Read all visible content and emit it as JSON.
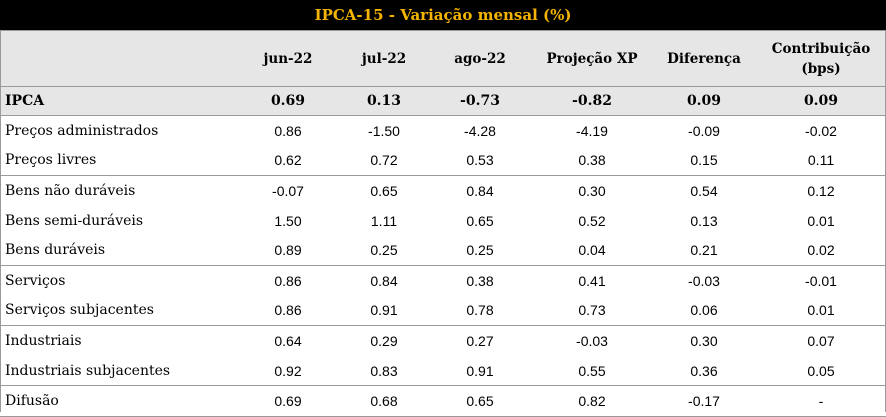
{
  "title": "IPCA-15 - Variação mensal (%)",
  "columns": [
    "",
    "jun-22",
    "jul-22",
    "ago-22",
    "Projeção XP",
    "Diferença",
    "Contribuição (bps)"
  ],
  "header_col6_line1": "Contribuição",
  "header_col6_line2": "(bps)",
  "rows": [
    {
      "label": "IPCA",
      "values": [
        "0.69",
        "0.13",
        "-0.73",
        "-0.82",
        "0.09",
        "0.09"
      ]
    },
    {
      "label": "Preços administrados",
      "values": [
        "0.86",
        "-1.50",
        "-4.28",
        "-4.19",
        "-0.09",
        "-0.02"
      ]
    },
    {
      "label": "Preços livres",
      "values": [
        "0.62",
        "0.72",
        "0.53",
        "0.38",
        "0.15",
        "0.11"
      ]
    },
    {
      "label": "Bens não duráveis",
      "values": [
        "-0.07",
        "0.65",
        "0.84",
        "0.30",
        "0.54",
        "0.12"
      ]
    },
    {
      "label": "Bens semi-duráveis",
      "values": [
        "1.50",
        "1.11",
        "0.65",
        "0.52",
        "0.13",
        "0.01"
      ]
    },
    {
      "label": "Bens duráveis",
      "values": [
        "0.89",
        "0.25",
        "0.25",
        "0.04",
        "0.21",
        "0.02"
      ]
    },
    {
      "label": "Serviços",
      "values": [
        "0.86",
        "0.84",
        "0.38",
        "0.41",
        "-0.03",
        "-0.01"
      ]
    },
    {
      "label": "Serviços subjacentes",
      "values": [
        "0.86",
        "0.91",
        "0.78",
        "0.73",
        "0.06",
        "0.01"
      ]
    },
    {
      "label": "Industriais",
      "values": [
        "0.64",
        "0.29",
        "0.27",
        "-0.03",
        "0.30",
        "0.07"
      ]
    },
    {
      "label": "Industriais subjacentes",
      "values": [
        "0.92",
        "0.83",
        "0.91",
        "0.55",
        "0.36",
        "0.05"
      ]
    },
    {
      "label": "Difusão",
      "values": [
        "0.69",
        "0.68",
        "0.65",
        "0.82",
        "-0.17",
        "-"
      ]
    }
  ],
  "colors": {
    "title_bg": "#000000",
    "title_text": "#f5b400",
    "header_bg": "#e6e6e6",
    "rule": "#9a9a9a"
  }
}
